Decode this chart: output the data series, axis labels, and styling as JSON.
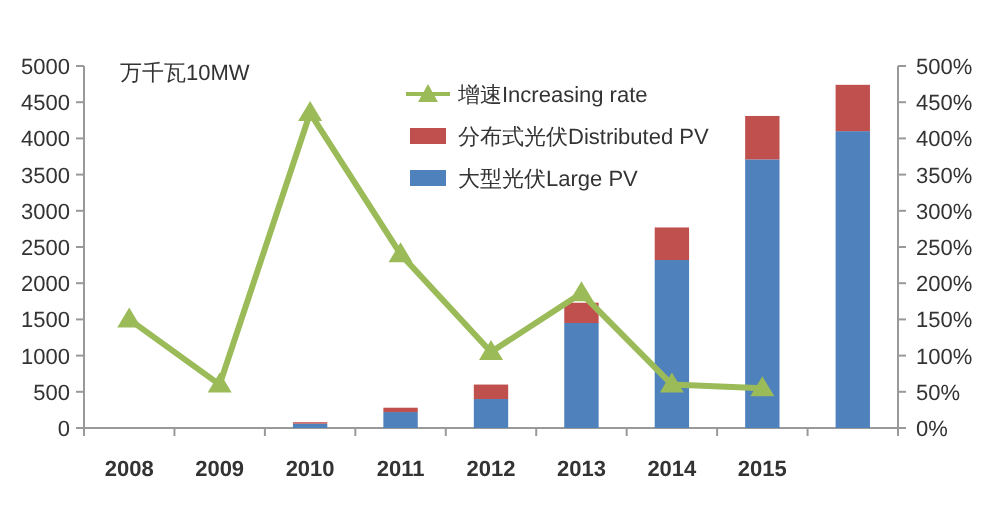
{
  "chart_data": {
    "type": "bar",
    "stacked": true,
    "ylabel": "万千瓦10MW",
    "legend": "top right",
    "categories": [
      "2008",
      "2009",
      "2010",
      "2011",
      "2012",
      "2013",
      "2014",
      "2015",
      null
    ],
    "series": [
      {
        "name": "大型光伏Large PV",
        "color": "#4f81bd",
        "values": [
          null,
          null,
          60,
          220,
          400,
          1450,
          2320,
          3710,
          4100
        ]
      },
      {
        "name": "分布式光伏Distributed PV",
        "color": "#c0504d",
        "values": [
          null,
          null,
          20,
          60,
          200,
          280,
          450,
          600,
          640
        ]
      },
      {
        "name": "增速Increasing rate",
        "type": "line",
        "axis": "y2",
        "marker": "triangle",
        "color": "#9bbb59",
        "values": [
          150,
          60,
          435,
          240,
          105,
          186,
          60,
          55,
          null
        ]
      }
    ],
    "ylim": [
      0,
      5000
    ],
    "yticks": [
      0,
      500,
      1000,
      1500,
      2000,
      2500,
      3000,
      3500,
      4000,
      4500,
      5000
    ],
    "y2lim": [
      0,
      500
    ],
    "y2ticks": [
      {
        "value": 0,
        "label": "0%"
      },
      {
        "value": 50,
        "label": "50%"
      },
      {
        "value": 100,
        "label": "100%"
      },
      {
        "value": 150,
        "label": "150%"
      },
      {
        "value": 200,
        "label": "200%"
      },
      {
        "value": 250,
        "label": "250%"
      },
      {
        "value": 300,
        "label": "300%"
      },
      {
        "value": 350,
        "label": "350%"
      },
      {
        "value": 400,
        "label": "400%"
      },
      {
        "value": 450,
        "label": "450%"
      },
      {
        "value": 500,
        "label": "500%"
      }
    ]
  }
}
